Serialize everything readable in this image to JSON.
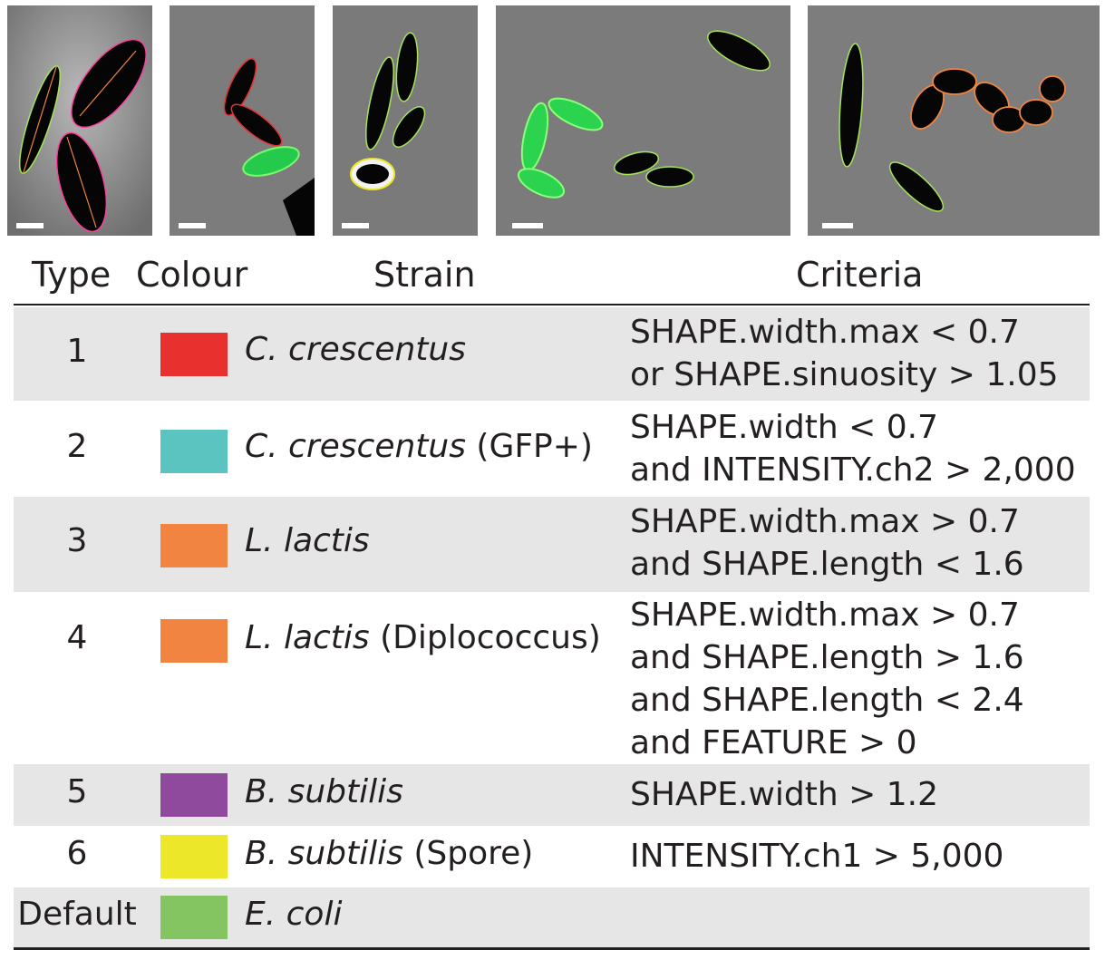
{
  "headers": {
    "type": "Type",
    "colour": "Colour",
    "strain": "Strain",
    "criteria": "Criteria"
  },
  "rows": [
    {
      "type": "1",
      "colour": "#e8302f",
      "strain_italic": "C. crescentus",
      "strain_extra": "",
      "criteria": [
        "SHAPE.width.max < 0.7",
        "or SHAPE.sinuosity > 1.05"
      ]
    },
    {
      "type": "2",
      "colour": "#5bc4c0",
      "strain_italic": "C. crescentus",
      "strain_extra": " (GFP+)",
      "criteria": [
        "SHAPE.width < 0.7",
        "and INTENSITY.ch2 > 2,000"
      ]
    },
    {
      "type": "3",
      "colour": "#f08440",
      "strain_italic": "L. lactis",
      "strain_extra": "",
      "criteria": [
        "SHAPE.width.max > 0.7",
        "and SHAPE.length < 1.6"
      ]
    },
    {
      "type": "4",
      "colour": "#f08440",
      "strain_italic": "L. lactis",
      "strain_extra": " (Diplococcus)",
      "criteria": [
        "SHAPE.width.max > 0.7",
        "and SHAPE.length > 1.6",
        "and SHAPE.length < 2.4",
        "and FEATURE > 0"
      ]
    },
    {
      "type": "5",
      "colour": "#8f4a9e",
      "strain_italic": "B. subtilis",
      "strain_extra": "",
      "criteria": [
        "SHAPE.width > 1.2"
      ]
    },
    {
      "type": "6",
      "colour": "#ede72a",
      "strain_italic": "B. subtilis",
      "strain_extra": " (Spore)",
      "criteria": [
        "INTENSITY.ch1 > 5,000"
      ]
    },
    {
      "type": "Default",
      "colour": "#84c561",
      "strain_italic": "E. coli",
      "strain_extra": "",
      "criteria": []
    }
  ]
}
